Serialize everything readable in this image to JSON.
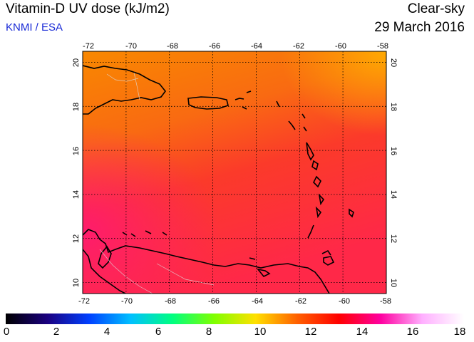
{
  "header": {
    "title": "Vitamin-D UV dose (kJ/m2)",
    "credit": "KNMI / ESA",
    "mode": "Clear-sky",
    "date": "29 March 2016"
  },
  "map": {
    "lon_ticks": [
      "-72",
      "-70",
      "-68",
      "-66",
      "-64",
      "-62",
      "-60",
      "-58"
    ],
    "lat_ticks": [
      "20",
      "18",
      "16",
      "14",
      "12",
      "10"
    ],
    "lon_range": [
      -72,
      -58
    ],
    "lat_range": [
      9.5,
      20.5
    ],
    "field_units": "kJ/m2",
    "field_description_colors": {
      "north": "#f98a00",
      "south": "#ff1a4a",
      "coast": "#000000"
    }
  },
  "colorbar": {
    "labels": [
      "0",
      "2",
      "4",
      "6",
      "8",
      "10",
      "12",
      "14",
      "16",
      "18"
    ],
    "min": 0,
    "max": 18,
    "stops": [
      "#000000",
      "#1a0080",
      "#0040ff",
      "#00c0ff",
      "#00ff80",
      "#80ff00",
      "#ffe000",
      "#ff6000",
      "#ff0000",
      "#ff00a0",
      "#ffb0ff",
      "#ffffff"
    ]
  }
}
